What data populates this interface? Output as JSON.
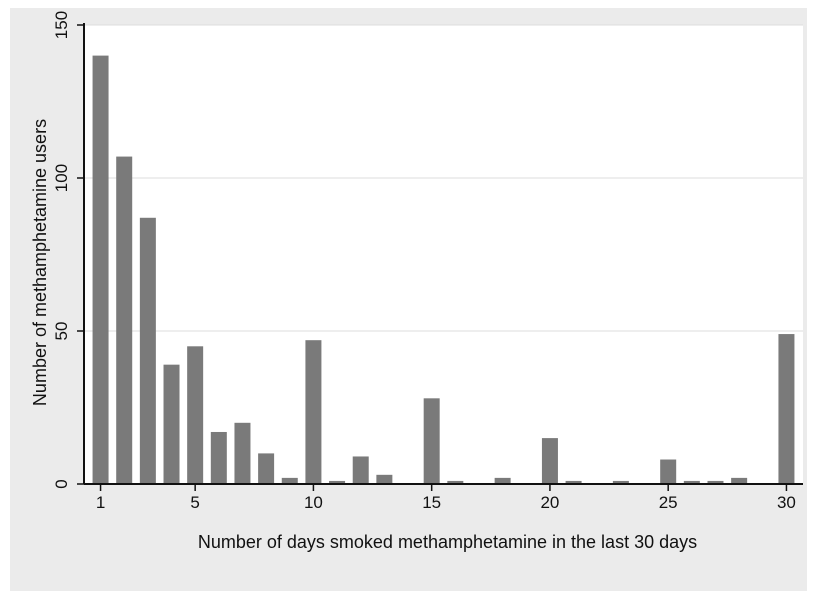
{
  "chart_data": {
    "type": "bar",
    "title": "",
    "xlabel": "Number of days smoked methamphetamine in the last 30 days",
    "ylabel": "Number of methamphetamine users",
    "x": [
      1,
      2,
      3,
      4,
      5,
      6,
      7,
      8,
      9,
      10,
      11,
      12,
      13,
      14,
      15,
      16,
      17,
      18,
      19,
      20,
      21,
      22,
      23,
      24,
      25,
      26,
      27,
      28,
      29,
      30
    ],
    "values": [
      140,
      107,
      87,
      39,
      45,
      17,
      20,
      10,
      2,
      47,
      1,
      9,
      3,
      0,
      28,
      1,
      0,
      2,
      0,
      15,
      1,
      0,
      1,
      0,
      8,
      1,
      1,
      2,
      0,
      49
    ],
    "xticks": [
      1,
      5,
      10,
      15,
      20,
      25,
      30
    ],
    "yticks": [
      0,
      50,
      100,
      150
    ],
    "xlim": [
      0.3,
      30.7
    ],
    "ylim": [
      0,
      150
    ],
    "grid": true,
    "colors": {
      "background": "#ebebeb",
      "plot_background": "#ffffff",
      "bar": "#7a7a7a",
      "grid": "#dcdcdc",
      "axis": "#111111"
    }
  }
}
